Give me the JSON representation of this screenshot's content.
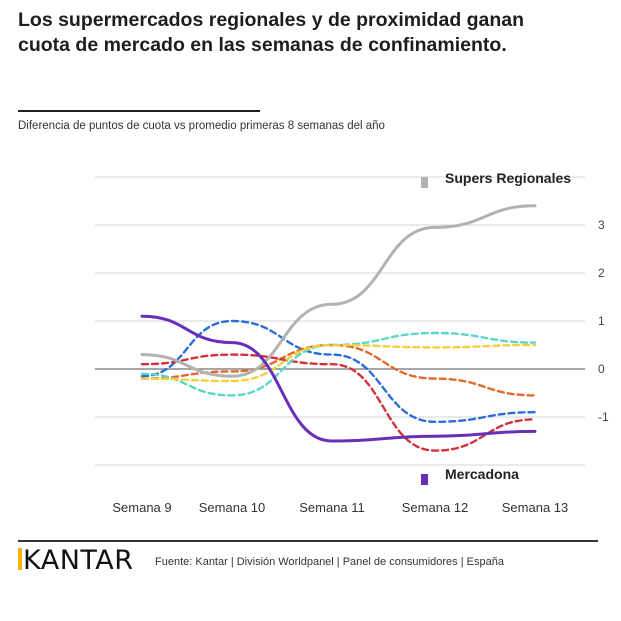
{
  "title": "Los supermercados regionales y de proximidad ganan cuota de mercado en las semanas de confinamiento.",
  "subtitle": "Diferencia de puntos de cuota vs promedio primeras 8 semanas del año",
  "logo": "KANTAR",
  "source": "Fuente: Kantar | División Worldpanel | Panel de consumidores | España",
  "chart_data": {
    "type": "line",
    "title": "Los supermercados regionales y de proximidad ganan cuota de mercado en las semanas de confinamiento.",
    "ylabel": "Diferencia de puntos de cuota vs promedio primeras 8 semanas del año",
    "categories": [
      "Semana 9",
      "Semana 10",
      "Semana 11",
      "Semana 12",
      "Semana 13"
    ],
    "y_ticks": [
      3,
      2,
      1,
      0,
      -1
    ],
    "y_tick_labels": [
      "3",
      "2",
      "1",
      "0",
      "-1"
    ],
    "ylim": [
      -2,
      4
    ],
    "gridlines": true,
    "annotations": [
      {
        "text": "Supers Regionales",
        "color": "#b2b2b2"
      },
      {
        "text": "Mercadona",
        "color": "#6a2fb8"
      }
    ],
    "series": [
      {
        "name": "Supers Regionales",
        "color": "#b2b2b2",
        "dashed": false,
        "values": [
          0.3,
          -0.15,
          1.35,
          2.95,
          3.4
        ]
      },
      {
        "name": "Mercadona",
        "color": "#6a2fb8",
        "dashed": false,
        "values": [
          1.1,
          0.55,
          -1.5,
          -1.4,
          -1.3
        ]
      },
      {
        "name": "Azul",
        "color": "#2a6fd8",
        "dashed": true,
        "values": [
          -0.15,
          1.0,
          0.3,
          -1.1,
          -0.9
        ]
      },
      {
        "name": "Naranja",
        "color": "#e06a2a",
        "dashed": true,
        "values": [
          -0.2,
          -0.05,
          0.5,
          -0.2,
          -0.55
        ]
      },
      {
        "name": "Rojo",
        "color": "#d1323e",
        "dashed": true,
        "values": [
          0.1,
          0.3,
          0.1,
          -1.7,
          -1.05
        ]
      },
      {
        "name": "Turquesa",
        "color": "#5cd6c8",
        "dashed": true,
        "values": [
          -0.1,
          -0.55,
          0.5,
          0.75,
          0.55
        ]
      },
      {
        "name": "Amarillo",
        "color": "#f0d03c",
        "dashed": true,
        "values": [
          -0.2,
          -0.25,
          0.5,
          0.45,
          0.5
        ]
      }
    ]
  }
}
